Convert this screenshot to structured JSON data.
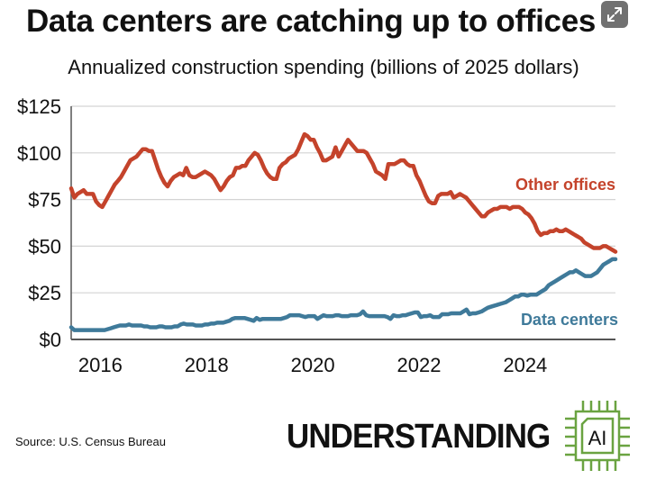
{
  "header": {
    "title": "Data centers are catching up to offices",
    "subtitle": "Annualized construction spending (billions of 2025 dollars)",
    "expand_icon": "expand-arrows-icon"
  },
  "footer": {
    "source": "Source: U.S. Census Bureau",
    "brand_text": "UNDERSTANDING",
    "brand_logo_text": "AI",
    "brand_logo_icon": "chip-icon"
  },
  "colors": {
    "offices": "#c4432b",
    "datacenters": "#3f7a9a",
    "grid": "#d4d4d4",
    "axis": "#555555",
    "logo_green": "#6aa341"
  },
  "chart_data": {
    "type": "line",
    "title": "Data centers are catching up to offices",
    "subtitle": "Annualized construction spending (billions of 2025 dollars)",
    "xlabel": "",
    "ylabel": "",
    "x_start": 2015.5,
    "x_end": 2025.75,
    "x_step": 0.0833,
    "xlim": [
      2015.5,
      2025.75
    ],
    "ylim": [
      0,
      125
    ],
    "yticks": [
      0,
      25,
      50,
      75,
      100,
      125
    ],
    "ytick_labels": [
      "$0",
      "$25",
      "$50",
      "$75",
      "$100",
      "$125"
    ],
    "xticks": [
      2016,
      2018,
      2020,
      2022,
      2024
    ],
    "xtick_labels": [
      "2016",
      "2018",
      "2020",
      "2022",
      "2024"
    ],
    "grid": true,
    "legend": "inline-labels-right",
    "series": [
      {
        "name": "Other offices",
        "label": "Other offices",
        "color": "#c4432b",
        "values": [
          81,
          76,
          78,
          79,
          80,
          78,
          78,
          78,
          74,
          72,
          71,
          74,
          77,
          80,
          83,
          85,
          87,
          90,
          93,
          96,
          97,
          98,
          100,
          102,
          102,
          101,
          101,
          96,
          91,
          87,
          84,
          82,
          85,
          87,
          88,
          89,
          88,
          92,
          88,
          87,
          87,
          88,
          89,
          90,
          89,
          88,
          86,
          83,
          80,
          82,
          85,
          87,
          88,
          92,
          92,
          93,
          93,
          96,
          98,
          100,
          99,
          96,
          92,
          89,
          87,
          86,
          86,
          92,
          94,
          95,
          97,
          98,
          99,
          102,
          106,
          110,
          109,
          107,
          107,
          103,
          100,
          96,
          96,
          97,
          98,
          103,
          98,
          101,
          104,
          107,
          105,
          103,
          101,
          101,
          101,
          100,
          97,
          94,
          90,
          89,
          88,
          86,
          94,
          94,
          94,
          95,
          96,
          96,
          94,
          93,
          93,
          88,
          85,
          81,
          77,
          74,
          73,
          73,
          77,
          78,
          78,
          78,
          79,
          76,
          77,
          78,
          77,
          76,
          74,
          72,
          70,
          68,
          66,
          66,
          68,
          69,
          70,
          70,
          71,
          71,
          71,
          70,
          71,
          71,
          71,
          70,
          68,
          67,
          65,
          62,
          58,
          56,
          57,
          57,
          58,
          58,
          59,
          58,
          58,
          59,
          58,
          57,
          56,
          55,
          54,
          52,
          51,
          50,
          49,
          49,
          49,
          50,
          50,
          49,
          48,
          47
        ]
      },
      {
        "name": "Data centers",
        "label": "Data centers",
        "color": "#3f7a9a",
        "values": [
          6.5,
          5,
          5,
          5,
          5,
          5,
          5,
          5,
          5,
          5,
          5,
          5,
          5.5,
          6,
          6.5,
          7,
          7.5,
          7.5,
          7.5,
          8,
          7.5,
          7.5,
          7.5,
          7.5,
          7,
          7,
          6.5,
          6.5,
          6.5,
          7,
          7,
          6.5,
          6.5,
          6.5,
          7,
          7,
          8,
          8.5,
          8,
          8,
          8,
          7.5,
          7.5,
          7.5,
          8,
          8,
          8.5,
          8.5,
          9,
          9,
          9,
          9.5,
          10,
          11,
          11.5,
          11.5,
          11.5,
          11.5,
          11,
          10.5,
          10,
          11.5,
          10.5,
          11,
          11,
          11,
          11,
          11,
          11,
          11,
          11.5,
          12,
          13,
          13,
          13,
          13,
          12.5,
          12,
          12.5,
          12.5,
          12.5,
          11,
          12,
          13,
          12.5,
          12.5,
          12.5,
          13,
          13,
          12.5,
          12.5,
          12.5,
          13,
          13,
          13,
          13.5,
          15,
          13,
          12.5,
          12.5,
          12.5,
          12.5,
          12.5,
          12.5,
          12,
          11,
          13,
          12.5,
          12.5,
          13,
          13,
          13.5,
          14,
          14.5,
          14.5,
          12,
          12.5,
          12.5,
          13,
          12,
          12,
          12,
          13.5,
          13.5,
          13.5,
          14,
          14,
          14,
          14,
          15,
          16,
          13.5,
          14,
          14,
          14.5,
          15,
          16,
          17,
          17.5,
          18,
          18.5,
          19,
          19.5,
          20,
          21,
          22,
          23,
          23,
          24,
          24,
          23.5,
          24,
          24,
          24,
          25,
          26,
          27,
          29,
          30,
          31,
          32,
          33,
          34,
          35,
          36,
          36,
          37,
          36,
          35,
          34,
          34,
          34,
          35,
          36,
          38,
          40,
          41,
          42,
          43,
          43
        ]
      }
    ]
  }
}
